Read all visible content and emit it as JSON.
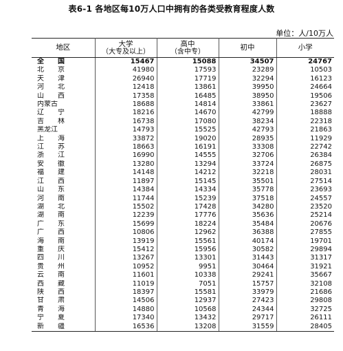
{
  "title": "表6-1 各地区每10万人口中拥有的各类受教育程度人数",
  "unit": "单位：人/10万人",
  "columns": {
    "region": "地区",
    "col1": {
      "main": "大学",
      "sub": "（大专及以上）"
    },
    "col2": {
      "main": "高中",
      "sub": "（含中专）"
    },
    "col3": {
      "main": "初中"
    },
    "col4": {
      "main": "小学"
    }
  },
  "rows": [
    {
      "region": "全　　国",
      "v1": "15467",
      "v2": "15088",
      "v3": "34507",
      "v4": "24767"
    },
    {
      "region": "北　　京",
      "v1": "41980",
      "v2": "17593",
      "v3": "23289",
      "v4": "10503"
    },
    {
      "region": "天　　津",
      "v1": "26940",
      "v2": "17719",
      "v3": "32294",
      "v4": "16123"
    },
    {
      "region": "河　　北",
      "v1": "12418",
      "v2": "13861",
      "v3": "39950",
      "v4": "24664"
    },
    {
      "region": "山　　西",
      "v1": "17358",
      "v2": "16485",
      "v3": "38950",
      "v4": "19506"
    },
    {
      "region": "内蒙古",
      "v1": "18688",
      "v2": "14814",
      "v3": "33861",
      "v4": "23627"
    },
    {
      "region": "辽　　宁",
      "v1": "18216",
      "v2": "14670",
      "v3": "42799",
      "v4": "18888"
    },
    {
      "region": "吉　　林",
      "v1": "16738",
      "v2": "17080",
      "v3": "38234",
      "v4": "22318"
    },
    {
      "region": "黑龙江",
      "v1": "14793",
      "v2": "15525",
      "v3": "42793",
      "v4": "21863"
    },
    {
      "region": "上　　海",
      "v1": "33872",
      "v2": "19020",
      "v3": "28935",
      "v4": "11929"
    },
    {
      "region": "江　　苏",
      "v1": "18663",
      "v2": "16191",
      "v3": "33308",
      "v4": "22742"
    },
    {
      "region": "浙　　江",
      "v1": "16990",
      "v2": "14555",
      "v3": "32706",
      "v4": "26384"
    },
    {
      "region": "安　　徽",
      "v1": "13280",
      "v2": "13294",
      "v3": "33724",
      "v4": "26875"
    },
    {
      "region": "福　　建",
      "v1": "14148",
      "v2": "14212",
      "v3": "32218",
      "v4": "28031"
    },
    {
      "region": "江　　西",
      "v1": "11897",
      "v2": "15145",
      "v3": "35501",
      "v4": "27514"
    },
    {
      "region": "山　　东",
      "v1": "14384",
      "v2": "14334",
      "v3": "35778",
      "v4": "23693"
    },
    {
      "region": "河　　南",
      "v1": "11744",
      "v2": "15239",
      "v3": "37518",
      "v4": "24557"
    },
    {
      "region": "湖　　北",
      "v1": "15502",
      "v2": "17428",
      "v3": "34280",
      "v4": "23520"
    },
    {
      "region": "湖　　南",
      "v1": "12239",
      "v2": "17776",
      "v3": "35636",
      "v4": "25214"
    },
    {
      "region": "广　　东",
      "v1": "15699",
      "v2": "18224",
      "v3": "35484",
      "v4": "20676"
    },
    {
      "region": "广　　西",
      "v1": "10806",
      "v2": "12962",
      "v3": "36388",
      "v4": "27855"
    },
    {
      "region": "海　　南",
      "v1": "13919",
      "v2": "15561",
      "v3": "40174",
      "v4": "19701"
    },
    {
      "region": "重　　庆",
      "v1": "15412",
      "v2": "15956",
      "v3": "30582",
      "v4": "29894"
    },
    {
      "region": "四　　川",
      "v1": "13267",
      "v2": "13301",
      "v3": "31443",
      "v4": "31317"
    },
    {
      "region": "贵　　州",
      "v1": "10952",
      "v2": "9951",
      "v3": "30464",
      "v4": "31921"
    },
    {
      "region": "云　　南",
      "v1": "11601",
      "v2": "10338",
      "v3": "29241",
      "v4": "35667"
    },
    {
      "region": "西　　藏",
      "v1": "11019",
      "v2": "7051",
      "v3": "15757",
      "v4": "32108"
    },
    {
      "region": "陕　　西",
      "v1": "18397",
      "v2": "15581",
      "v3": "33979",
      "v4": "21686"
    },
    {
      "region": "甘　　肃",
      "v1": "14506",
      "v2": "12937",
      "v3": "27423",
      "v4": "29808"
    },
    {
      "region": "青　　海",
      "v1": "14880",
      "v2": "10568",
      "v3": "24344",
      "v4": "32725"
    },
    {
      "region": "宁　　夏",
      "v1": "17340",
      "v2": "13432",
      "v3": "29717",
      "v4": "26111"
    },
    {
      "region": "新　　疆",
      "v1": "16536",
      "v2": "13208",
      "v3": "31559",
      "v4": "28405"
    }
  ]
}
